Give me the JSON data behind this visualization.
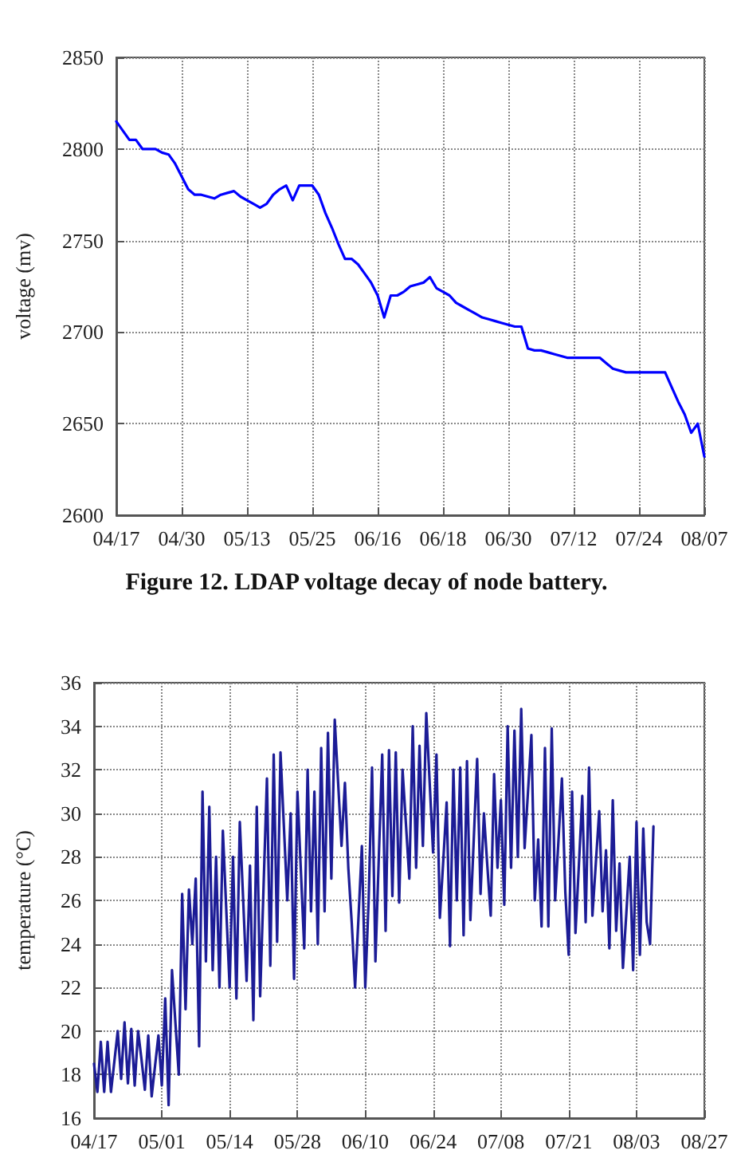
{
  "chart_data": [
    {
      "type": "line",
      "title": "Figure 12. LDAP voltage decay of node battery.",
      "ylabel": "voltage (mv)",
      "grid": true,
      "line_style": "solid",
      "categories": [
        "04/17",
        null,
        null,
        null,
        null,
        null,
        null,
        null,
        null,
        null,
        "04/30",
        null,
        null,
        null,
        null,
        null,
        null,
        null,
        null,
        null,
        "05/13",
        null,
        null,
        null,
        null,
        null,
        null,
        null,
        null,
        null,
        "05/25",
        null,
        null,
        null,
        null,
        null,
        null,
        null,
        null,
        null,
        "06/16",
        null,
        null,
        null,
        null,
        null,
        null,
        null,
        null,
        null,
        "06/18",
        null,
        null,
        null,
        null,
        null,
        null,
        null,
        null,
        null,
        "06/30",
        null,
        null,
        null,
        null,
        null,
        null,
        null,
        null,
        null,
        "07/12",
        null,
        null,
        null,
        null,
        null,
        null,
        null,
        null,
        null,
        "07/24",
        null,
        null,
        null,
        null,
        null,
        null,
        null,
        null,
        null,
        "08/07"
      ],
      "ylim": [
        2600,
        2850
      ],
      "yticks": [
        2600,
        2650,
        2700,
        2750,
        2800,
        2850
      ],
      "series": [
        {
          "color": "#0000ff",
          "values": [
            2815,
            2810,
            2805,
            2805,
            2800,
            2800,
            2800,
            2798,
            2797,
            2792,
            2785,
            2778,
            2775,
            2775,
            2774,
            2773,
            2775,
            2776,
            2777,
            2774,
            2772,
            2770,
            2768,
            2770,
            2775,
            2778,
            2780,
            2772,
            2780,
            2780,
            2780,
            2775,
            2765,
            2757,
            2748,
            2740,
            2740,
            2737,
            2732,
            2727,
            2720,
            2708,
            2720,
            2720,
            2722,
            2725,
            2726,
            2727,
            2730,
            2724,
            2722,
            2720,
            2716,
            2714,
            2712,
            2710,
            2708,
            2707,
            2706,
            2705,
            2704,
            2703,
            2703,
            2691,
            2690,
            2690,
            2689,
            2688,
            2687,
            2686,
            2686,
            2686,
            2686,
            2686,
            2686,
            2683,
            2680,
            2679,
            2678,
            2678,
            2678,
            2678,
            2678,
            2678,
            2678,
            2670,
            2662,
            2655,
            2645,
            2650,
            2632
          ]
        }
      ]
    },
    {
      "type": "line",
      "ylabel": "temperature (°C)",
      "grid": true,
      "line_style": "solid",
      "categories": [
        "04/17",
        null,
        null,
        null,
        null,
        null,
        null,
        null,
        null,
        null,
        null,
        null,
        null,
        null,
        null,
        null,
        null,
        null,
        null,
        null,
        "05/01",
        null,
        null,
        null,
        null,
        null,
        null,
        null,
        null,
        null,
        null,
        null,
        null,
        null,
        null,
        null,
        null,
        null,
        null,
        null,
        "05/14",
        null,
        null,
        null,
        null,
        null,
        null,
        null,
        null,
        null,
        null,
        null,
        null,
        null,
        null,
        null,
        null,
        null,
        null,
        null,
        "05/28",
        null,
        null,
        null,
        null,
        null,
        null,
        null,
        null,
        null,
        null,
        null,
        null,
        null,
        null,
        null,
        null,
        null,
        null,
        null,
        "06/10",
        null,
        null,
        null,
        null,
        null,
        null,
        null,
        null,
        null,
        null,
        null,
        null,
        null,
        null,
        null,
        null,
        null,
        null,
        null,
        "06/24",
        null,
        null,
        null,
        null,
        null,
        null,
        null,
        null,
        null,
        null,
        null,
        null,
        null,
        null,
        null,
        null,
        null,
        null,
        null,
        "07/08",
        null,
        null,
        null,
        null,
        null,
        null,
        null,
        null,
        null,
        null,
        null,
        null,
        null,
        null,
        null,
        null,
        null,
        null,
        null,
        "07/21",
        null,
        null,
        null,
        null,
        null,
        null,
        null,
        null,
        null,
        null,
        null,
        null,
        null,
        null,
        null,
        null,
        null,
        null,
        null,
        "08/03",
        null,
        null,
        null,
        null,
        null,
        null,
        null,
        null,
        null,
        null,
        null,
        null,
        null,
        null,
        null,
        null,
        null,
        null,
        null,
        "08/27"
      ],
      "ylim": [
        16,
        36
      ],
      "yticks": [
        16,
        18,
        20,
        22,
        24,
        26,
        28,
        30,
        32,
        34,
        36
      ],
      "series": [
        {
          "color": "#1c1c96",
          "values": [
            18.5,
            17.2,
            19.5,
            17.2,
            19.5,
            17.2,
            18.6,
            20,
            17.8,
            20.4,
            17.6,
            20.1,
            17.5,
            20,
            18.7,
            17.3,
            19.8,
            17,
            18.4,
            19.8,
            17.5,
            21.5,
            16.6,
            22.8,
            20.4,
            18,
            26.3,
            21,
            26.5,
            24,
            27,
            19.3,
            31,
            23.2,
            30.3,
            22.8,
            28,
            22,
            29.2,
            25.6,
            22,
            28,
            21.5,
            29.6,
            26,
            22.3,
            27.6,
            20.5,
            30.3,
            21.6,
            26.6,
            31.6,
            23,
            32.7,
            24.1,
            32.8,
            29.4,
            26,
            30,
            22.4,
            31,
            27.4,
            23.8,
            32,
            25.5,
            31,
            24,
            33,
            25.5,
            33.7,
            27,
            34.3,
            31.4,
            28.5,
            31.4,
            27.5,
            25,
            22,
            25.2,
            28.5,
            22,
            26,
            32.1,
            23.2,
            28,
            32.7,
            24.6,
            32.9,
            26.2,
            32.8,
            25.9,
            32,
            29.5,
            27,
            34,
            27.5,
            33.1,
            28.5,
            34.6,
            31.4,
            28.2,
            32.7,
            25.2,
            27.8,
            30.5,
            23.9,
            32,
            26,
            32.1,
            24.4,
            32.4,
            25.1,
            28.8,
            32.5,
            26.3,
            30,
            27.6,
            25.3,
            31.8,
            27.5,
            30.6,
            25.8,
            34,
            27.5,
            33.8,
            28,
            34.8,
            28.4,
            31,
            33.6,
            26,
            28.8,
            24.8,
            33,
            24.8,
            33.9,
            26,
            28.8,
            31.6,
            26.4,
            23.5,
            31,
            24.5,
            27.6,
            30.8,
            25,
            32.1,
            25.3,
            27.7,
            30.1,
            25.5,
            28.3,
            23.8,
            30.6,
            24.6,
            27.7,
            22.9,
            25.4,
            28,
            22.8,
            29.6,
            23.5,
            29.3,
            25,
            24,
            29.4,
            null,
            null,
            null,
            null,
            null,
            null,
            null,
            null,
            null,
            null,
            null,
            null,
            null,
            null,
            null
          ]
        }
      ]
    }
  ]
}
